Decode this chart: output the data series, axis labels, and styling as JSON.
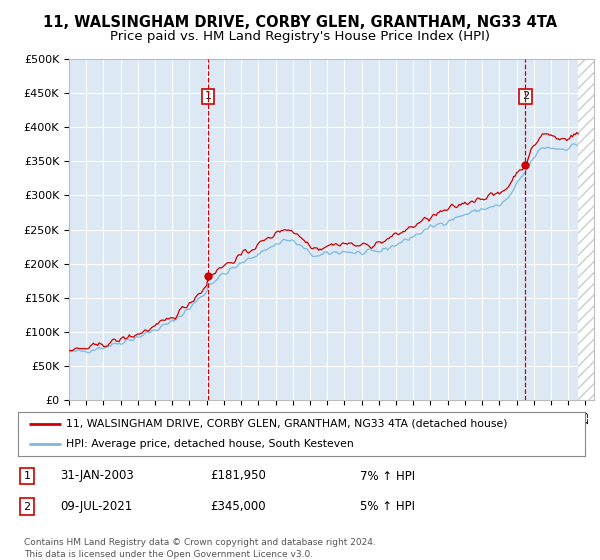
{
  "title": "11, WALSINGHAM DRIVE, CORBY GLEN, GRANTHAM, NG33 4TA",
  "subtitle": "Price paid vs. HM Land Registry's House Price Index (HPI)",
  "title_fontsize": 10.5,
  "subtitle_fontsize": 9.5,
  "ylabel_ticks": [
    "£0",
    "£50K",
    "£100K",
    "£150K",
    "£200K",
    "£250K",
    "£300K",
    "£350K",
    "£400K",
    "£450K",
    "£500K"
  ],
  "ylim": [
    0,
    500000
  ],
  "xlim_start": 1995.0,
  "xlim_end": 2025.5,
  "background_color": "#dce9f5",
  "plot_bg_color": "#dce9f5",
  "hpi_color": "#7eb8e0",
  "price_color": "#cc0000",
  "legend_label_price": "11, WALSINGHAM DRIVE, CORBY GLEN, GRANTHAM, NG33 4TA (detached house)",
  "legend_label_hpi": "HPI: Average price, detached house, South Kesteven",
  "point1_date": "31-JAN-2003",
  "point1_price": "£181,950",
  "point1_pct": "7% ↑ HPI",
  "point1_x": 2003.08,
  "point1_y": 181950,
  "point2_date": "09-JUL-2021",
  "point2_price": "£345,000",
  "point2_pct": "5% ↑ HPI",
  "point2_x": 2021.52,
  "point2_y": 345000,
  "copyright": "Contains HM Land Registry data © Crown copyright and database right 2024.\nThis data is licensed under the Open Government Licence v3.0."
}
